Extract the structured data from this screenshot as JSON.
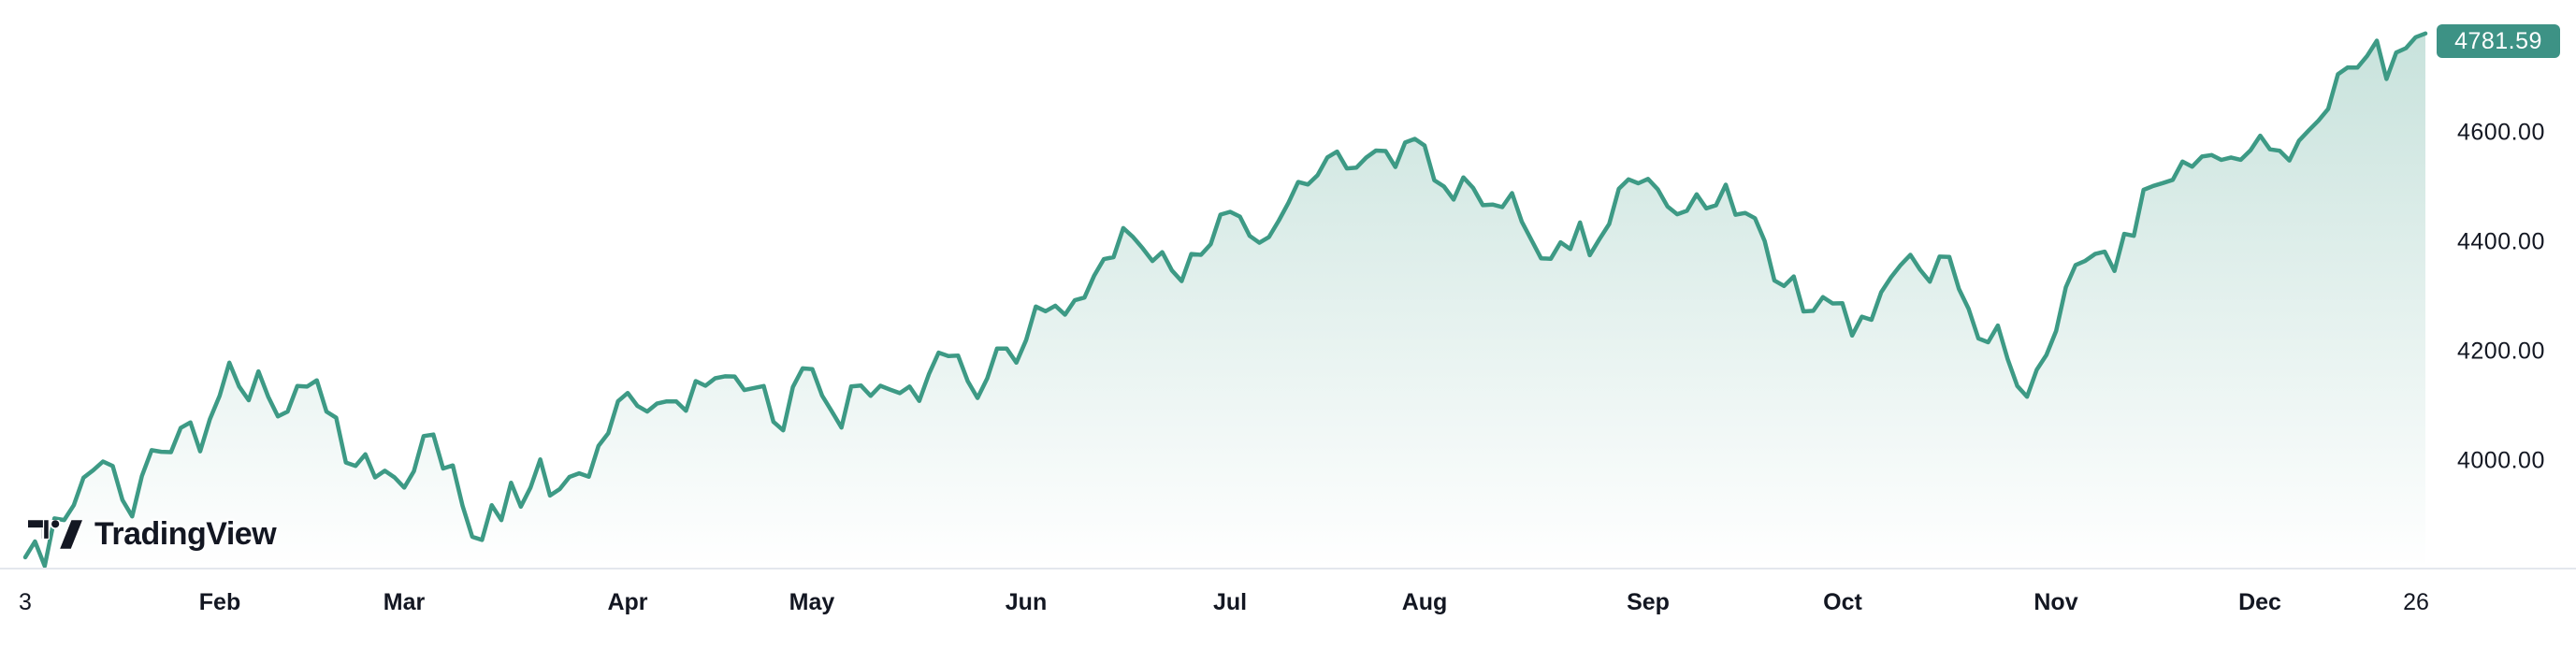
{
  "brand": {
    "logo_text": "TradingView"
  },
  "colors": {
    "line": "#3d9a85",
    "fill_top": "rgba(61,154,132,0.30)",
    "fill_bottom": "rgba(61,154,132,0)",
    "badge_bg": "#3d9285",
    "badge_text": "#ffffff",
    "axis_text": "#131722",
    "axis_line": "#e4e7ed",
    "background": "#ffffff"
  },
  "price_scale": {
    "last_price_label": "4781.59",
    "ticks": [
      {
        "value": 4600,
        "label": "4600.00"
      },
      {
        "value": 4400,
        "label": "4400.00"
      },
      {
        "value": 4200,
        "label": "4200.00"
      },
      {
        "value": 4000,
        "label": "4000.00"
      }
    ]
  },
  "time_scale": {
    "ticks": [
      {
        "label": "3",
        "bold": false,
        "day_index": 0
      },
      {
        "label": "Feb",
        "bold": true,
        "day_index": 20
      },
      {
        "label": "Mar",
        "bold": true,
        "day_index": 39
      },
      {
        "label": "Apr",
        "bold": true,
        "day_index": 62
      },
      {
        "label": "May",
        "bold": true,
        "day_index": 81
      },
      {
        "label": "Jun",
        "bold": true,
        "day_index": 103
      },
      {
        "label": "Jul",
        "bold": true,
        "day_index": 124
      },
      {
        "label": "Aug",
        "bold": true,
        "day_index": 144
      },
      {
        "label": "Sep",
        "bold": true,
        "day_index": 167
      },
      {
        "label": "Oct",
        "bold": true,
        "day_index": 187
      },
      {
        "label": "Nov",
        "bold": true,
        "day_index": 209
      },
      {
        "label": "Dec",
        "bold": true,
        "day_index": 230
      },
      {
        "label": "26",
        "bold": false,
        "day_index": 246
      }
    ]
  },
  "chart_data": {
    "type": "area",
    "title": "",
    "legend_position": "none",
    "grid": false,
    "y_axis_ticks": [
      4000,
      4200,
      4400,
      4600
    ],
    "y_visible_range": [
      3805,
      4843
    ],
    "last_price": 4781.59,
    "x": [
      "01-03",
      "01-04",
      "01-05",
      "01-06",
      "01-09",
      "01-10",
      "01-11",
      "01-12",
      "01-13",
      "01-17",
      "01-18",
      "01-19",
      "01-20",
      "01-23",
      "01-24",
      "01-25",
      "01-26",
      "01-27",
      "01-30",
      "01-31",
      "02-01",
      "02-02",
      "02-03",
      "02-06",
      "02-07",
      "02-08",
      "02-09",
      "02-10",
      "02-13",
      "02-14",
      "02-15",
      "02-16",
      "02-17",
      "02-21",
      "02-22",
      "02-23",
      "02-24",
      "02-27",
      "02-28",
      "03-01",
      "03-02",
      "03-03",
      "03-06",
      "03-07",
      "03-08",
      "03-09",
      "03-10",
      "03-13",
      "03-14",
      "03-15",
      "03-16",
      "03-17",
      "03-20",
      "03-21",
      "03-22",
      "03-23",
      "03-24",
      "03-27",
      "03-28",
      "03-29",
      "03-30",
      "03-31",
      "04-03",
      "04-04",
      "04-05",
      "04-06",
      "04-10",
      "04-11",
      "04-12",
      "04-13",
      "04-14",
      "04-17",
      "04-18",
      "04-19",
      "04-20",
      "04-21",
      "04-24",
      "04-25",
      "04-26",
      "04-27",
      "04-28",
      "05-01",
      "05-02",
      "05-03",
      "05-04",
      "05-05",
      "05-08",
      "05-09",
      "05-10",
      "05-11",
      "05-12",
      "05-15",
      "05-16",
      "05-17",
      "05-18",
      "05-19",
      "05-22",
      "05-23",
      "05-24",
      "05-25",
      "05-26",
      "05-30",
      "05-31",
      "06-01",
      "06-02",
      "06-05",
      "06-06",
      "06-07",
      "06-08",
      "06-09",
      "06-12",
      "06-13",
      "06-14",
      "06-15",
      "06-16",
      "06-20",
      "06-21",
      "06-22",
      "06-23",
      "06-26",
      "06-27",
      "06-28",
      "06-29",
      "06-30",
      "07-03",
      "07-05",
      "07-06",
      "07-07",
      "07-10",
      "07-11",
      "07-12",
      "07-13",
      "07-14",
      "07-17",
      "07-18",
      "07-19",
      "07-20",
      "07-21",
      "07-24",
      "07-25",
      "07-26",
      "07-27",
      "07-28",
      "07-31",
      "08-01",
      "08-02",
      "08-03",
      "08-04",
      "08-07",
      "08-08",
      "08-09",
      "08-10",
      "08-11",
      "08-14",
      "08-15",
      "08-16",
      "08-17",
      "08-18",
      "08-21",
      "08-22",
      "08-23",
      "08-24",
      "08-25",
      "08-28",
      "08-29",
      "08-30",
      "08-31",
      "09-01",
      "09-05",
      "09-06",
      "09-07",
      "09-08",
      "09-11",
      "09-12",
      "09-13",
      "09-14",
      "09-15",
      "09-18",
      "09-19",
      "09-20",
      "09-21",
      "09-22",
      "09-25",
      "09-26",
      "09-27",
      "09-28",
      "09-29",
      "10-02",
      "10-03",
      "10-04",
      "10-05",
      "10-06",
      "10-09",
      "10-10",
      "10-11",
      "10-12",
      "10-13",
      "10-16",
      "10-17",
      "10-18",
      "10-19",
      "10-20",
      "10-23",
      "10-24",
      "10-25",
      "10-26",
      "10-27",
      "10-30",
      "10-31",
      "11-01",
      "11-02",
      "11-03",
      "11-06",
      "11-07",
      "11-08",
      "11-09",
      "11-10",
      "11-13",
      "11-14",
      "11-15",
      "11-16",
      "11-17",
      "11-20",
      "11-21",
      "11-22",
      "11-24",
      "11-27",
      "11-28",
      "11-29",
      "11-30",
      "12-01",
      "12-04",
      "12-05",
      "12-06",
      "12-07",
      "12-08",
      "12-11",
      "12-12",
      "12-13",
      "12-14",
      "12-15",
      "12-18",
      "12-19",
      "12-20",
      "12-21",
      "12-22",
      "12-26",
      "12-27"
    ],
    "values": [
      3824.14,
      3852.97,
      3808.1,
      3895.08,
      3892.09,
      3919.25,
      3969.61,
      3983.17,
      3999.09,
      3990.97,
      3928.86,
      3898.85,
      3972.61,
      4019.81,
      4016.95,
      4016.22,
      4060.43,
      4070.56,
      4017.77,
      4076.6,
      4119.21,
      4179.76,
      4136.48,
      4111.08,
      4164.0,
      4117.86,
      4081.5,
      4090.46,
      4137.29,
      4136.13,
      4147.6,
      4090.41,
      4079.09,
      3997.34,
      3991.05,
      4012.32,
      3970.04,
      3982.24,
      3970.15,
      3951.39,
      3981.35,
      4045.64,
      4048.42,
      3986.37,
      3992.01,
      3918.32,
      3861.59,
      3855.76,
      3919.29,
      3891.93,
      3960.28,
      3916.64,
      3951.57,
      4002.87,
      3936.97,
      3948.72,
      3970.99,
      3977.53,
      3971.27,
      4027.81,
      4050.83,
      4109.31,
      4124.51,
      4100.6,
      4090.38,
      4105.02,
      4109.11,
      4108.94,
      4091.95,
      4146.22,
      4137.64,
      4151.32,
      4154.87,
      4154.52,
      4129.79,
      4133.52,
      4137.04,
      4071.63,
      4055.99,
      4135.35,
      4169.48,
      4167.87,
      4119.58,
      4090.75,
      4061.22,
      4136.25,
      4138.12,
      4119.17,
      4137.64,
      4130.62,
      4124.08,
      4136.28,
      4109.9,
      4158.77,
      4198.05,
      4191.98,
      4192.63,
      4145.58,
      4115.24,
      4151.28,
      4205.45,
      4205.52,
      4179.83,
      4221.02,
      4282.37,
      4273.79,
      4283.85,
      4267.52,
      4293.93,
      4298.86,
      4338.93,
      4369.01,
      4372.59,
      4425.84,
      4409.59,
      4388.71,
      4365.69,
      4381.89,
      4348.33,
      4328.82,
      4378.41,
      4376.86,
      4396.44,
      4450.38,
      4455.59,
      4446.82,
      4411.59,
      4398.95,
      4409.53,
      4439.26,
      4472.16,
      4510.04,
      4505.42,
      4522.79,
      4554.98,
      4565.72,
      4534.87,
      4536.34,
      4554.64,
      4567.46,
      4566.75,
      4537.41,
      4582.23,
      4588.96,
      4576.73,
      4513.39,
      4501.89,
      4478.03,
      4518.44,
      4499.38,
      4467.71,
      4468.83,
      4464.05,
      4489.72,
      4437.86,
      4404.33,
      4370.36,
      4369.71,
      4399.77,
      4387.55,
      4436.01,
      4376.31,
      4405.71,
      4433.31,
      4497.63,
      4514.87,
      4507.66,
      4515.77,
      4496.83,
      4465.48,
      4451.14,
      4457.49,
      4487.46,
      4461.9,
      4467.44,
      4505.1,
      4450.32,
      4453.53,
      4443.95,
      4402.2,
      4330.0,
      4320.06,
      4337.44,
      4273.53,
      4274.51,
      4299.7,
      4288.05,
      4288.39,
      4229.45,
      4263.75,
      4258.19,
      4308.5,
      4335.66,
      4358.24,
      4376.95,
      4349.61,
      4327.78,
      4373.63,
      4373.2,
      4314.6,
      4278.0,
      4224.16,
      4217.04,
      4247.68,
      4186.77,
      4137.23,
      4117.37,
      4166.82,
      4193.8,
      4237.86,
      4317.78,
      4358.34,
      4365.98,
      4378.38,
      4382.78,
      4347.35,
      4415.24,
      4411.55,
      4495.7,
      4502.88,
      4508.24,
      4514.02,
      4547.38,
      4538.19,
      4556.62,
      4559.34,
      4550.43,
      4554.89,
      4550.58,
      4567.8,
      4594.63,
      4569.78,
      4567.18,
      4549.34,
      4585.59,
      4604.37,
      4622.44,
      4643.7,
      4707.09,
      4719.55,
      4719.19,
      4740.56,
      4768.37,
      4698.35,
      4746.75,
      4754.63,
      4774.75,
      4781.59
    ]
  }
}
